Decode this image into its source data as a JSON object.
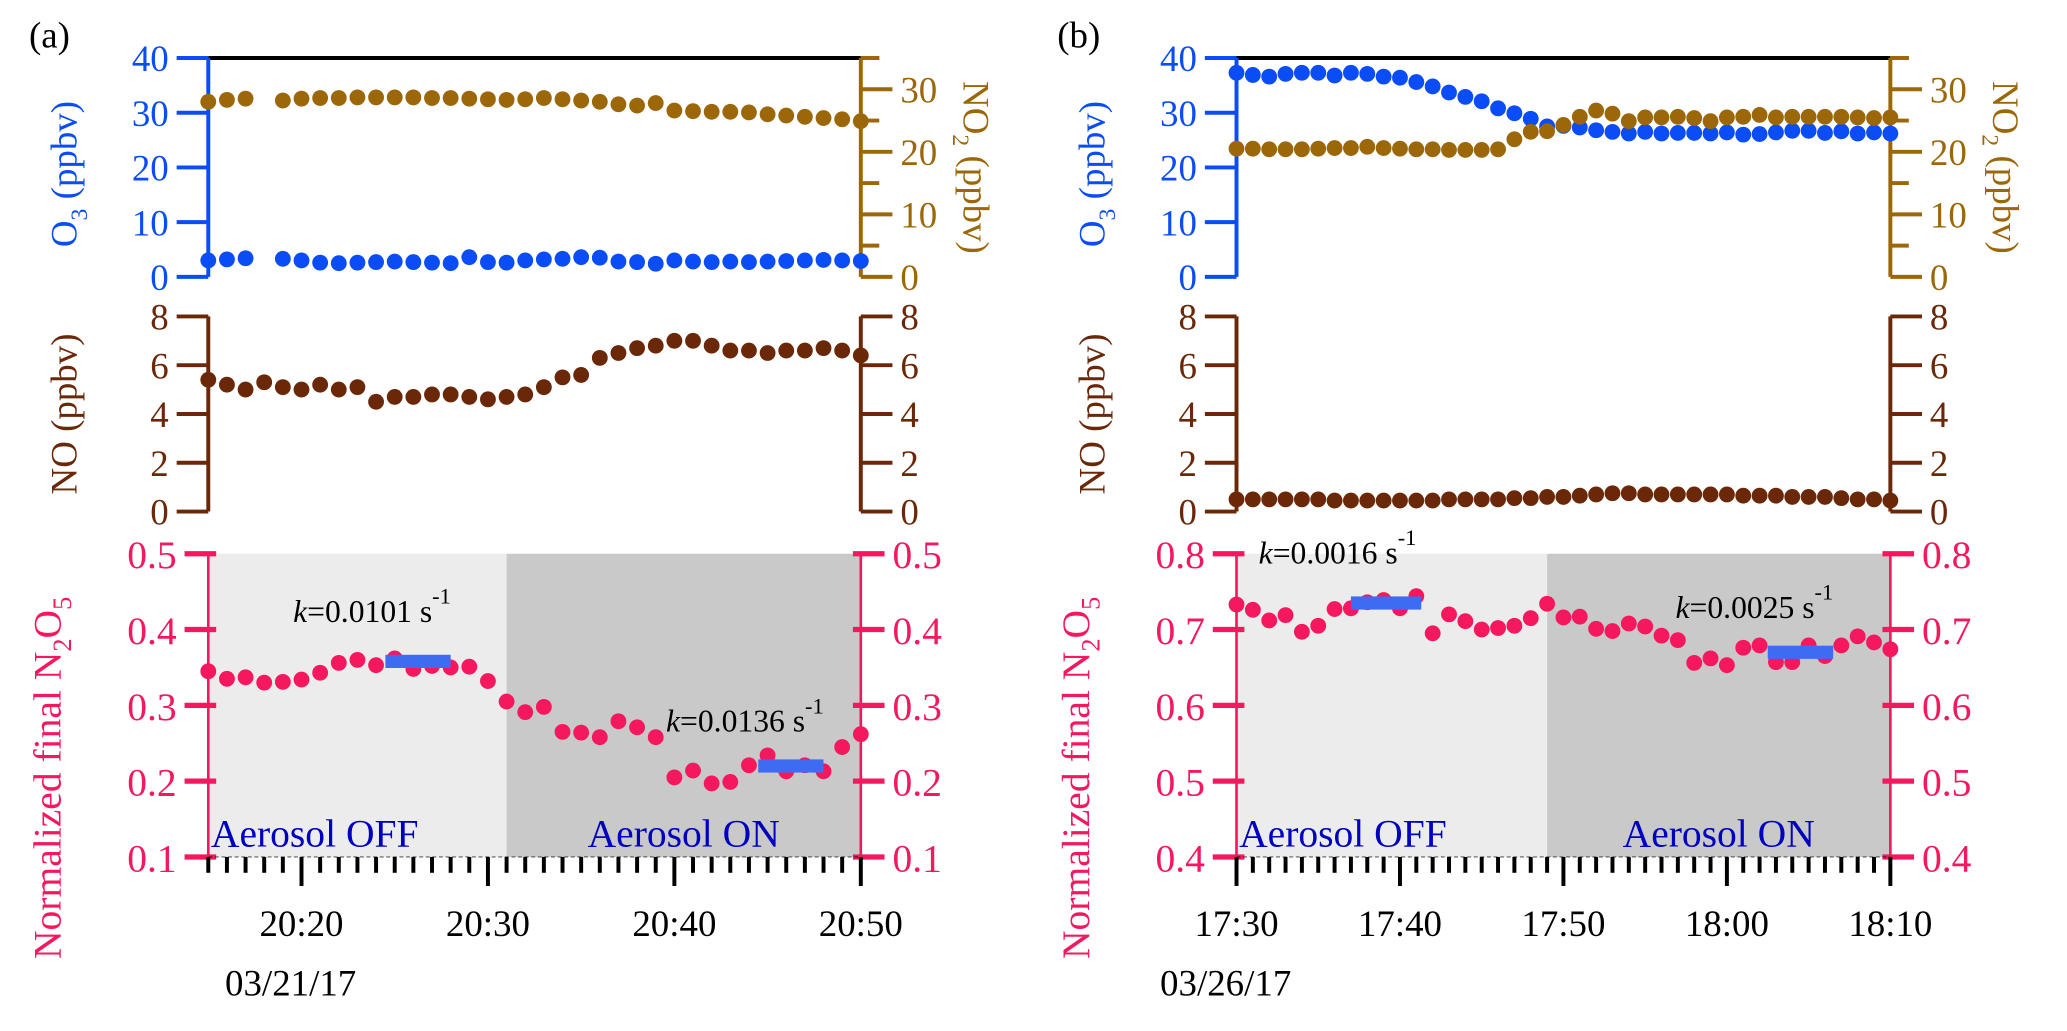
{
  "chart_data": [
    {
      "type": "scatter",
      "panel_label": "(a)",
      "date_label": "03/21/17",
      "x_ticks": [
        "20:20",
        "20:30",
        "20:40",
        "20:50"
      ],
      "x_range_min": [
        15,
        50
      ],
      "x_major_min": [
        20,
        30,
        40,
        50
      ],
      "top": {
        "left_axis": {
          "label": "O3 (ppbv)",
          "ylim": [
            0,
            40
          ],
          "ticks": [
            "0",
            "10",
            "20",
            "30",
            "40"
          ]
        },
        "right_axis": {
          "label": "NO2 (ppbv)",
          "ylim": [
            0,
            35
          ],
          "ticks": [
            "0",
            "10",
            "20",
            "30"
          ]
        },
        "series": [
          {
            "name": "O3",
            "axis": "left",
            "color": "#0a4cf5",
            "x": [
              15,
              16,
              17,
              19,
              20,
              21,
              22,
              23,
              24,
              25,
              26,
              27,
              28,
              29,
              30,
              31,
              32,
              33,
              34,
              35,
              36,
              37,
              38,
              39,
              40,
              41,
              42,
              43,
              44,
              45,
              46,
              47,
              48,
              49,
              50
            ],
            "y": [
              3,
              3.2,
              3.4,
              3.3,
              3,
              2.6,
              2.5,
              2.6,
              2.7,
              2.8,
              2.7,
              2.6,
              2.5,
              3.6,
              2.7,
              2.6,
              3,
              3.2,
              3.3,
              3.6,
              3.5,
              2.8,
              2.7,
              2.4,
              3,
              2.8,
              2.7,
              2.8,
              2.7,
              2.8,
              2.9,
              3,
              3.1,
              3,
              2.9
            ]
          },
          {
            "name": "NO2",
            "axis": "right",
            "color": "#9b6709",
            "x": [
              15,
              16,
              17,
              19,
              20,
              21,
              22,
              23,
              24,
              25,
              26,
              27,
              28,
              29,
              30,
              31,
              32,
              33,
              34,
              35,
              36,
              37,
              38,
              39,
              40,
              41,
              42,
              43,
              44,
              45,
              46,
              47,
              48,
              49,
              50
            ],
            "y": [
              28,
              28.3,
              28.5,
              28.2,
              28.5,
              28.6,
              28.6,
              28.7,
              28.7,
              28.7,
              28.7,
              28.6,
              28.6,
              28.5,
              28.4,
              28.3,
              28.4,
              28.6,
              28.4,
              28.2,
              28,
              27.6,
              27.4,
              27.8,
              26.6,
              26.5,
              26.4,
              26.4,
              26.3,
              26,
              25.8,
              25.6,
              25.4,
              25.2,
              24.9
            ]
          }
        ]
      },
      "middle": {
        "axis": {
          "label": "NO (ppbv)",
          "ylim": [
            0,
            8
          ],
          "ticks": [
            "0",
            "2",
            "4",
            "6",
            "8"
          ]
        },
        "series": [
          {
            "name": "NO",
            "color": "#6a2808",
            "x": [
              15,
              16,
              17,
              18,
              19,
              20,
              21,
              22,
              23,
              24,
              25,
              26,
              27,
              28,
              29,
              30,
              31,
              32,
              33,
              34,
              35,
              36,
              37,
              38,
              39,
              40,
              41,
              42,
              43,
              44,
              45,
              46,
              47,
              48,
              49,
              50
            ],
            "y": [
              5.4,
              5.2,
              5.0,
              5.3,
              5.1,
              5.0,
              5.2,
              5.0,
              5.1,
              4.5,
              4.7,
              4.7,
              4.8,
              4.8,
              4.7,
              4.6,
              4.7,
              4.8,
              5.1,
              5.5,
              5.6,
              6.3,
              6.5,
              6.7,
              6.8,
              7.0,
              7.0,
              6.8,
              6.6,
              6.6,
              6.5,
              6.6,
              6.6,
              6.7,
              6.6,
              6.4
            ]
          }
        ]
      },
      "bottom": {
        "axis": {
          "label": "Normalized final N2O5",
          "ylim": [
            0.1,
            0.5
          ],
          "ticks": [
            "0.1",
            "0.2",
            "0.3",
            "0.4",
            "0.5"
          ]
        },
        "regions": [
          {
            "label": "Aerosol OFF",
            "x_range": [
              15,
              31
            ],
            "color": "#ececec"
          },
          {
            "label": "Aerosol ON",
            "x_range": [
              31,
              50
            ],
            "color": "#c9c9c9"
          }
        ],
        "series": [
          {
            "name": "N2O5",
            "color": "#f5185e",
            "x": [
              15,
              16,
              17,
              18,
              19,
              20,
              21,
              22,
              23,
              24,
              25,
              26,
              27,
              28,
              29,
              30,
              31,
              32,
              33,
              34,
              35,
              36,
              37,
              38,
              39,
              40,
              41,
              42,
              43,
              44,
              45,
              46,
              47,
              48,
              49,
              50
            ],
            "y": [
              0.345,
              0.335,
              0.337,
              0.33,
              0.331,
              0.334,
              0.343,
              0.356,
              0.36,
              0.353,
              0.362,
              0.348,
              0.352,
              0.35,
              0.351,
              0.332,
              0.305,
              0.291,
              0.298,
              0.265,
              0.264,
              0.258,
              0.279,
              0.271,
              0.258,
              0.205,
              0.214,
              0.197,
              0.199,
              0.221,
              0.234,
              0.213,
              0.221,
              0.213,
              0.245,
              0.262
            ]
          }
        ],
        "fits": [
          {
            "label_k": "k",
            "label_value": "=0.0101 s",
            "label_sup": "-1",
            "x_range": [
              24.5,
              28
            ],
            "y": 0.358
          },
          {
            "label_k": "k",
            "label_value": "=0.0136 s",
            "label_sup": "-1",
            "x_range": [
              44.5,
              48
            ],
            "y": 0.22
          }
        ]
      }
    },
    {
      "type": "scatter",
      "panel_label": "(b)",
      "date_label": "03/26/17",
      "x_ticks": [
        "17:30",
        "17:40",
        "17:50",
        "18:00",
        "18:10"
      ],
      "x_range_min": [
        30,
        70
      ],
      "x_major_min": [
        30,
        40,
        50,
        60,
        70
      ],
      "top": {
        "left_axis": {
          "label": "O3 (ppbv)",
          "ylim": [
            0,
            40
          ],
          "ticks": [
            "0",
            "10",
            "20",
            "30",
            "40"
          ]
        },
        "right_axis": {
          "label": "NO2 (ppbv)",
          "ylim": [
            0,
            35
          ],
          "ticks": [
            "0",
            "10",
            "20",
            "30"
          ]
        },
        "series": [
          {
            "name": "O3",
            "axis": "left",
            "color": "#0a4cf5",
            "x": [
              30,
              31,
              32,
              33,
              34,
              35,
              36,
              37,
              38,
              39,
              40,
              41,
              42,
              43,
              44,
              45,
              46,
              47,
              48,
              49,
              50,
              51,
              52,
              53,
              54,
              55,
              56,
              57,
              58,
              59,
              60,
              61,
              62,
              63,
              64,
              65,
              66,
              67,
              68,
              69,
              70
            ],
            "y": [
              37.3,
              36.9,
              36.6,
              37.1,
              37.3,
              37.3,
              36.8,
              37.3,
              37.1,
              36.6,
              36.4,
              35.6,
              34.8,
              33.7,
              32.9,
              32.1,
              30.8,
              29.9,
              28.9,
              27.5,
              27.6,
              27.3,
              26.8,
              26.5,
              26.2,
              26.5,
              26.2,
              26.3,
              26.3,
              26.2,
              26.4,
              26,
              26.1,
              26.4,
              26.7,
              26.7,
              26.3,
              26.6,
              26.2,
              26.4,
              26.2
            ]
          },
          {
            "name": "NO2",
            "axis": "right",
            "color": "#9b6709",
            "x": [
              30,
              31,
              32,
              33,
              34,
              35,
              36,
              37,
              38,
              39,
              40,
              41,
              42,
              43,
              44,
              45,
              46,
              47,
              48,
              49,
              50,
              51,
              52,
              53,
              54,
              55,
              56,
              57,
              58,
              59,
              60,
              61,
              62,
              63,
              64,
              65,
              66,
              67,
              68,
              69,
              70
            ],
            "y": [
              20.5,
              20.5,
              20.4,
              20.4,
              20.4,
              20.5,
              20.6,
              20.6,
              20.8,
              20.6,
              20.5,
              20.4,
              20.4,
              20.3,
              20.3,
              20.3,
              20.4,
              22,
              23.2,
              23.3,
              24.3,
              25.6,
              26.6,
              26.1,
              24.9,
              25.5,
              25.5,
              25.6,
              25.4,
              24.9,
              25.5,
              25.6,
              25.9,
              25.5,
              25.6,
              25.6,
              25.6,
              25.6,
              25.5,
              25.4,
              25.5
            ]
          }
        ]
      },
      "middle": {
        "axis": {
          "label": "NO (ppbv)",
          "ylim": [
            0,
            8
          ],
          "ticks": [
            "0",
            "2",
            "4",
            "6",
            "8"
          ]
        },
        "series": [
          {
            "name": "NO",
            "color": "#6a2808",
            "x": [
              30,
              31,
              32,
              33,
              34,
              35,
              36,
              37,
              38,
              39,
              40,
              41,
              42,
              43,
              44,
              45,
              46,
              47,
              48,
              49,
              50,
              51,
              52,
              53,
              54,
              55,
              56,
              57,
              58,
              59,
              60,
              61,
              62,
              63,
              64,
              65,
              66,
              67,
              68,
              69,
              70
            ],
            "y": [
              0.5,
              0.5,
              0.5,
              0.5,
              0.5,
              0.5,
              0.45,
              0.45,
              0.45,
              0.45,
              0.45,
              0.45,
              0.45,
              0.5,
              0.5,
              0.5,
              0.5,
              0.55,
              0.55,
              0.6,
              0.6,
              0.65,
              0.7,
              0.75,
              0.75,
              0.7,
              0.7,
              0.7,
              0.7,
              0.7,
              0.7,
              0.65,
              0.65,
              0.65,
              0.6,
              0.6,
              0.6,
              0.55,
              0.5,
              0.5,
              0.45
            ]
          }
        ]
      },
      "bottom": {
        "axis": {
          "label": "Normalized final N2O5",
          "ylim": [
            0.4,
            0.8
          ],
          "ticks": [
            "0.4",
            "0.5",
            "0.6",
            "0.7",
            "0.8"
          ]
        },
        "regions": [
          {
            "label": "Aerosol OFF",
            "x_range": [
              30,
              49
            ],
            "color": "#ececec"
          },
          {
            "label": "Aerosol ON",
            "x_range": [
              49,
              70
            ],
            "color": "#c9c9c9"
          }
        ],
        "series": [
          {
            "name": "N2O5",
            "color": "#f5185e",
            "x": [
              30,
              31,
              32,
              33,
              34,
              35,
              36,
              37,
              38,
              39,
              40,
              41,
              42,
              43,
              44,
              45,
              46,
              47,
              48,
              49,
              50,
              51,
              52,
              53,
              54,
              55,
              56,
              57,
              58,
              59,
              60,
              61,
              62,
              63,
              64,
              65,
              66,
              67,
              68,
              69,
              70
            ],
            "y": [
              0.733,
              0.726,
              0.712,
              0.719,
              0.697,
              0.705,
              0.727,
              0.728,
              0.736,
              0.739,
              0.728,
              0.744,
              0.695,
              0.72,
              0.711,
              0.7,
              0.702,
              0.705,
              0.715,
              0.734,
              0.716,
              0.717,
              0.701,
              0.698,
              0.708,
              0.704,
              0.692,
              0.686,
              0.656,
              0.662,
              0.653,
              0.676,
              0.679,
              0.657,
              0.657,
              0.679,
              0.665,
              0.679,
              0.691,
              0.683,
              0.674
            ]
          }
        ],
        "fits": [
          {
            "label_k": "k",
            "label_value": "=0.0016 s",
            "label_sup": "-1",
            "x_range": [
              37,
              41.3
            ],
            "y": 0.735
          },
          {
            "label_k": "k",
            "label_value": "=0.0025 s",
            "label_sup": "-1",
            "x_range": [
              62.5,
              66.5
            ],
            "y": 0.67
          }
        ]
      }
    }
  ]
}
